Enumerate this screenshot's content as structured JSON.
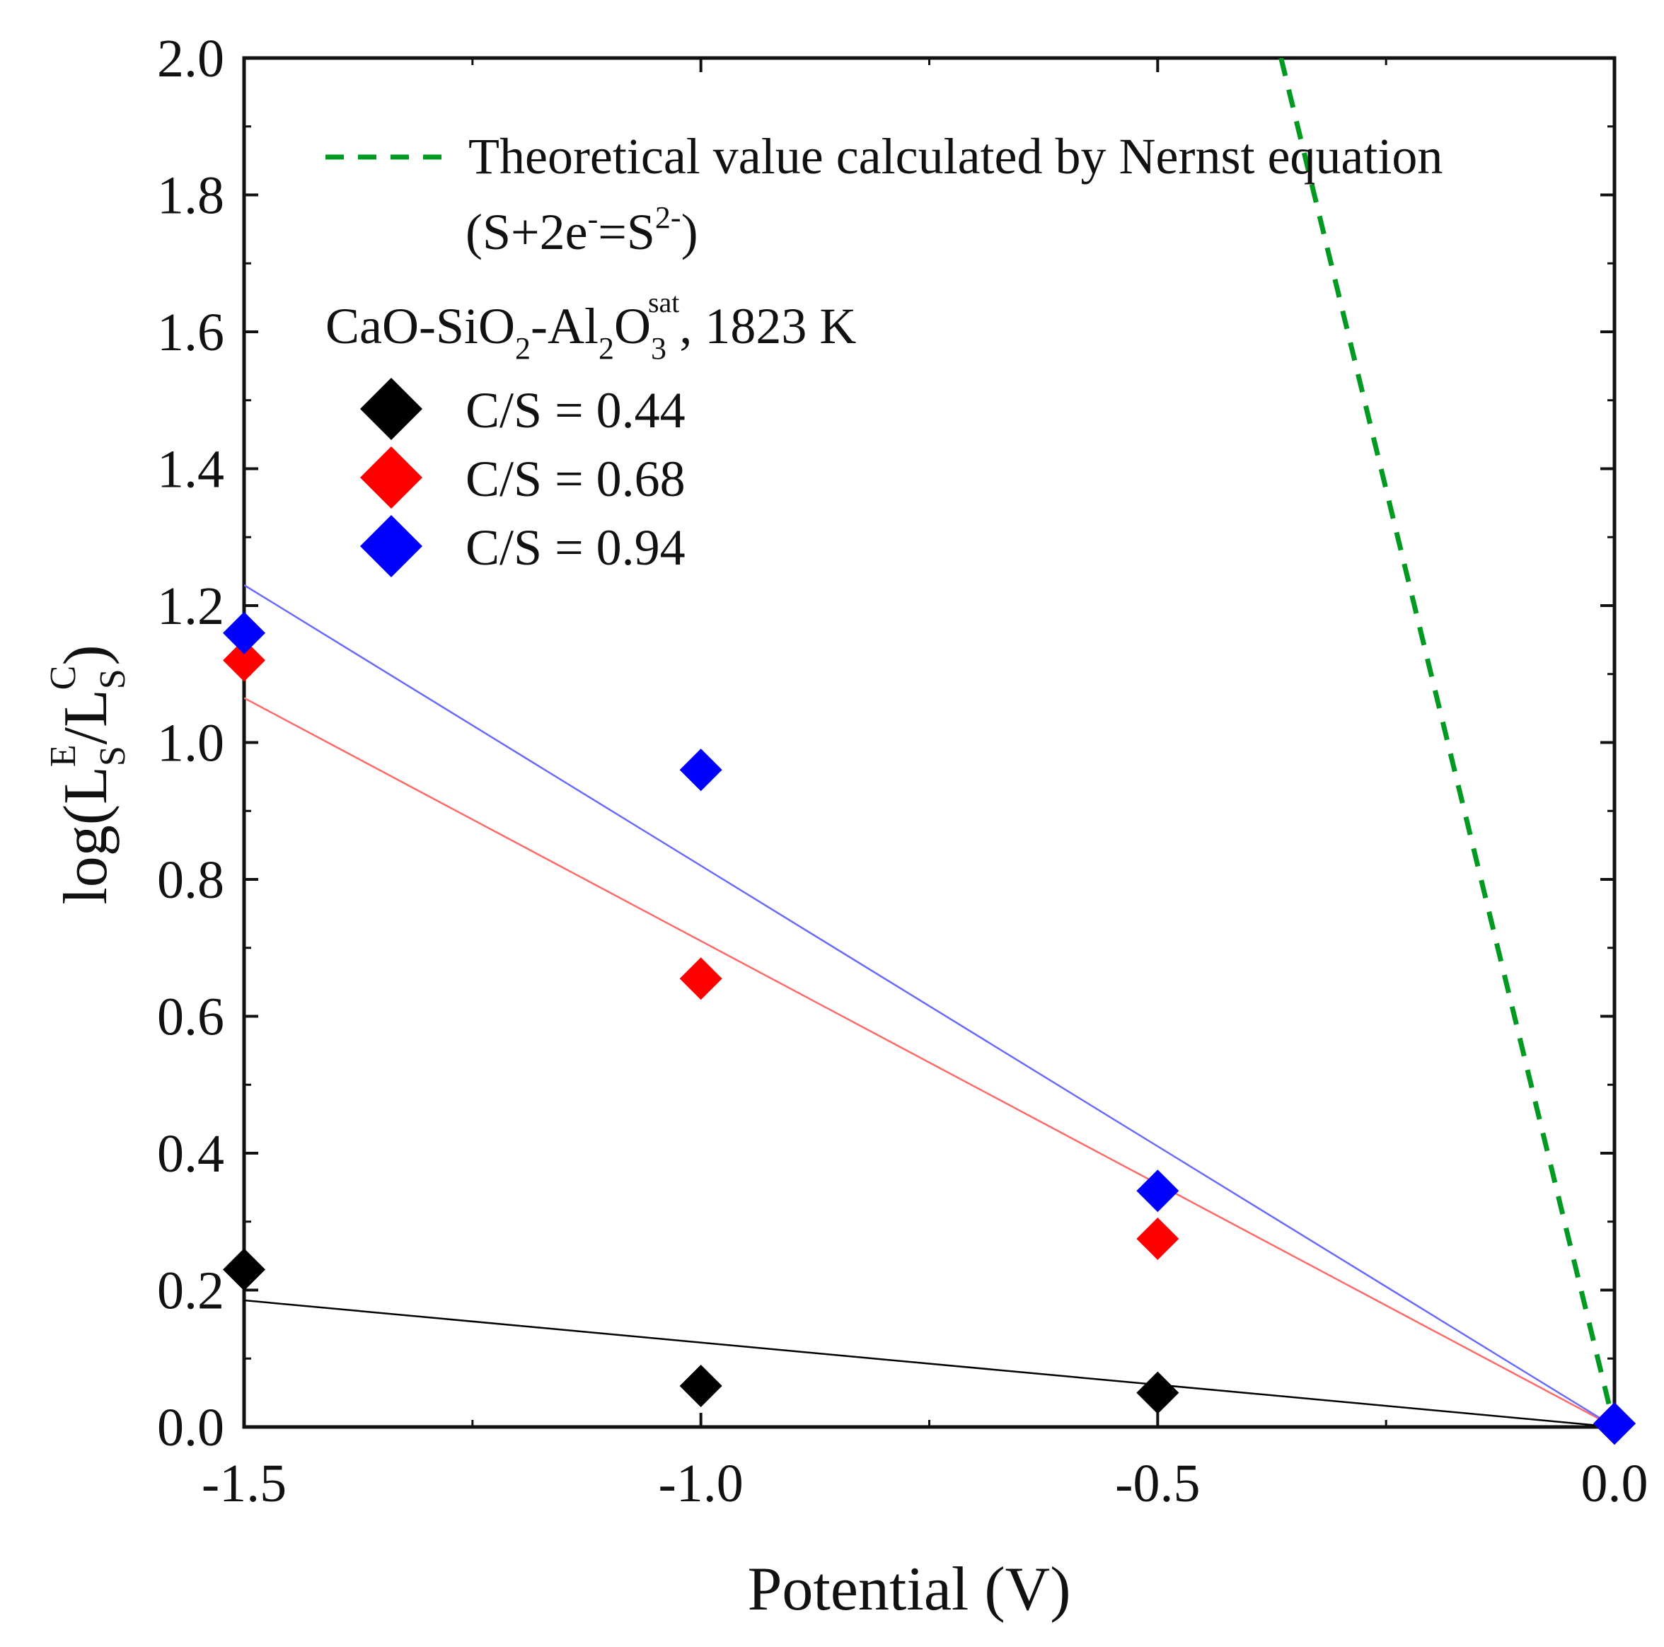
{
  "chart_data": {
    "type": "scatter",
    "title": "",
    "xlabel": "Potential (V)",
    "ylabel": {
      "base": "log(L",
      "sub1": "S",
      "sup1": "E",
      "slash": "/L",
      "sub2": "S",
      "sup2": "C",
      "close": ")"
    },
    "xlim": [
      -1.5,
      0.0
    ],
    "ylim": [
      0.0,
      2.0
    ],
    "xticks": [
      -1.5,
      -1.0,
      -0.5,
      0.0
    ],
    "xtick_labels": [
      "-1.5",
      "-1.0",
      "-0.5",
      "0.0"
    ],
    "yticks": [
      0.0,
      0.2,
      0.4,
      0.6,
      0.8,
      1.0,
      1.2,
      1.4,
      1.6,
      1.8,
      2.0
    ],
    "ytick_labels": [
      "0.0",
      "0.2",
      "0.4",
      "0.6",
      "0.8",
      "1.0",
      "1.2",
      "1.4",
      "1.6",
      "1.8",
      "2.0"
    ],
    "grid": false,
    "series": [
      {
        "name": "C/S = 0.44",
        "legend_label": "C/S = 0.44",
        "color": "#000000",
        "marker": "diamond",
        "points": [
          [
            -1.5,
            0.23
          ],
          [
            -1.0,
            0.06
          ],
          [
            -0.5,
            0.05
          ],
          [
            0.0,
            0.005
          ]
        ],
        "fit": [
          [
            -1.5,
            0.185
          ],
          [
            0.0,
            0.0
          ]
        ]
      },
      {
        "name": "C/S = 0.68",
        "legend_label": "C/S = 0.68",
        "color": "#ff0000",
        "marker": "diamond",
        "points": [
          [
            -1.5,
            1.12
          ],
          [
            -1.0,
            0.655
          ],
          [
            -0.5,
            0.275
          ],
          [
            0.0,
            0.005
          ]
        ],
        "fit": [
          [
            -1.5,
            1.065
          ],
          [
            0.0,
            0.0
          ]
        ],
        "fit_color": "#ff6a6a"
      },
      {
        "name": "C/S = 0.94",
        "legend_label": "C/S = 0.94",
        "color": "#0000ff",
        "marker": "diamond",
        "points": [
          [
            -1.5,
            1.16
          ],
          [
            -1.0,
            0.96
          ],
          [
            -0.5,
            0.345
          ],
          [
            0.0,
            0.005
          ]
        ],
        "fit": [
          [
            -1.5,
            1.23
          ],
          [
            0.0,
            0.0
          ]
        ],
        "fit_color": "#6a6aff"
      },
      {
        "name": "Theoretical value calculated by Nernst equation",
        "color": "#009a20",
        "style": "dashed",
        "line": [
          [
            -0.365,
            2.0
          ],
          [
            0.0,
            0.0
          ]
        ]
      }
    ],
    "annotations": {
      "nernst_legend": "Theoretical value calculated by Nernst equation",
      "reaction": {
        "open": "(S+2e",
        "sup_minus": "-",
        "eq": "=S",
        "sup_charge": "2-",
        "close": ")"
      },
      "system": {
        "a": "CaO-SiO",
        "sub_a": "2",
        "b": "-Al",
        "sub_b": "2",
        "c": "O",
        "sub_c": "3",
        "sup_c": "sat",
        "d": ", 1823 K"
      }
    },
    "legend_position": "upper-left"
  }
}
